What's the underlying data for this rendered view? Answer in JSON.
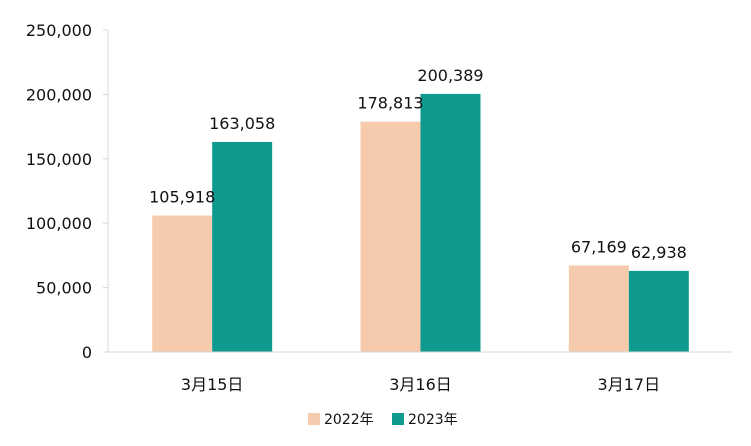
{
  "chart_data": {
    "type": "bar",
    "categories": [
      "3月15日",
      "3月16日",
      "3月17日"
    ],
    "series": [
      {
        "name": "2022年",
        "values": [
          105918,
          178813,
          67169
        ],
        "color": "#f6cbad"
      },
      {
        "name": "2023年",
        "values": [
          163058,
          200389,
          62938
        ],
        "color": "#0e9a8f"
      }
    ],
    "data_labels": [
      [
        "105,918",
        "178,813",
        "67,169"
      ],
      [
        "163,058",
        "200,389",
        "62,938"
      ]
    ],
    "ylim": [
      0,
      250000
    ],
    "yticks": [
      0,
      50000,
      100000,
      150000,
      200000,
      250000
    ],
    "ytick_labels": [
      "0",
      "50,000",
      "100,000",
      "150,000",
      "200,000",
      "250,000"
    ],
    "grid": false,
    "legend_position": "bottom-center"
  }
}
